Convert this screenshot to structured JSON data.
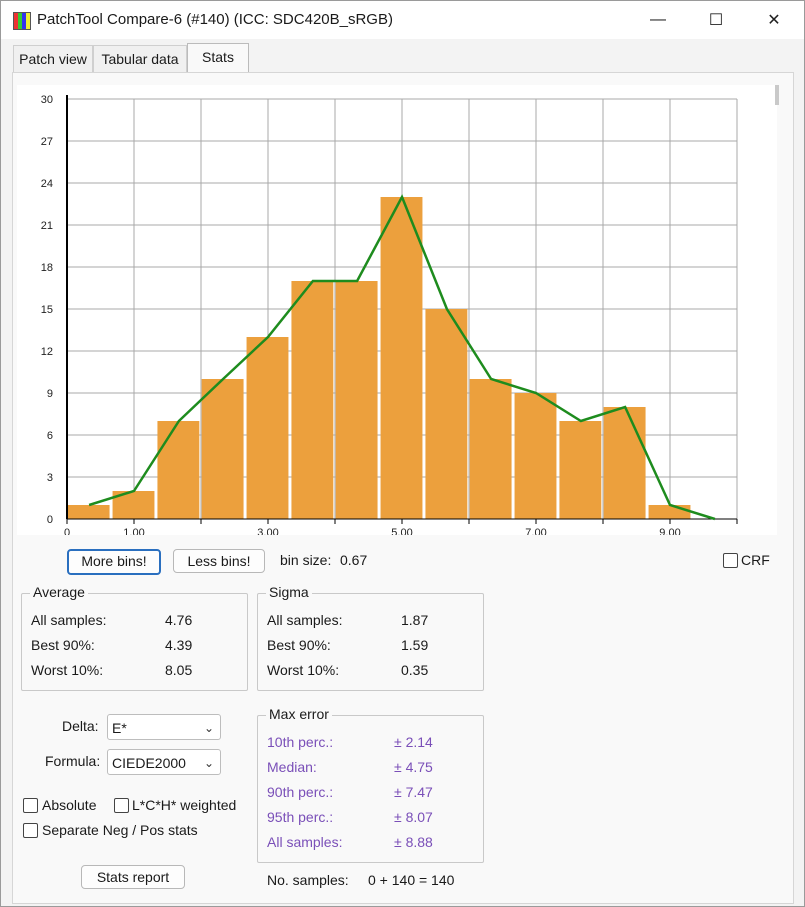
{
  "window": {
    "title": "PatchTool Compare-6 (#140) (ICC: SDC420B_sRGB)",
    "minimize": "—",
    "maximize": "☐",
    "close": "✕"
  },
  "tabs": [
    {
      "label": "Patch view"
    },
    {
      "label": "Tabular data"
    },
    {
      "label": "Stats"
    }
  ],
  "colors": {
    "bar": "#eca03d",
    "line": "#1e8c1e",
    "accent": "#2a6fbf",
    "purple_text": "#7a4fb8"
  },
  "chart_data": {
    "type": "bar",
    "bin_centers": [
      0.33,
      1.0,
      1.67,
      2.33,
      3.0,
      3.67,
      4.33,
      5.0,
      5.67,
      6.33,
      7.0,
      7.67,
      8.33,
      9.0
    ],
    "values": [
      1,
      2,
      7,
      10,
      13,
      17,
      17,
      23,
      15,
      10,
      9,
      7,
      8,
      1
    ],
    "line_x": [
      0.33,
      1.0,
      1.67,
      2.33,
      3.0,
      3.67,
      4.33,
      5.0,
      5.67,
      6.33,
      7.0,
      7.67,
      8.33,
      9.0,
      9.67
    ],
    "line_y": [
      1,
      2,
      7,
      10,
      13,
      17,
      17,
      23,
      15,
      10,
      9,
      7,
      8,
      1,
      0
    ],
    "xlim": [
      0,
      10
    ],
    "ylim": [
      0,
      30
    ],
    "yticks": [
      "0",
      "3",
      "6",
      "9",
      "12",
      "15",
      "18",
      "21",
      "24",
      "27",
      "30"
    ],
    "xticks": [
      {
        "v": 0,
        "label": "0"
      },
      {
        "v": 1,
        "label": "1.00"
      },
      {
        "v": 3,
        "label": "3.00"
      },
      {
        "v": 5,
        "label": "5.00"
      },
      {
        "v": 7,
        "label": "7.00"
      },
      {
        "v": 9,
        "label": "9.00"
      }
    ],
    "grid": true
  },
  "controls": {
    "more_bins": "More bins!",
    "less_bins": "Less bins!",
    "bin_size_label": "bin size:",
    "bin_size_value": "0.67",
    "crf_label": "CRF"
  },
  "average": {
    "title": "Average",
    "rows": [
      {
        "label": "All samples:",
        "value": "4.76"
      },
      {
        "label": "Best 90%:",
        "value": "4.39"
      },
      {
        "label": "Worst 10%:",
        "value": "8.05"
      }
    ]
  },
  "sigma": {
    "title": "Sigma",
    "rows": [
      {
        "label": "All samples:",
        "value": "1.87"
      },
      {
        "label": "Best 90%:",
        "value": "1.59"
      },
      {
        "label": "Worst 10%:",
        "value": "0.35"
      }
    ]
  },
  "delta": {
    "label": "Delta:",
    "value": "E*"
  },
  "formula": {
    "label": "Formula:",
    "value": "CIEDE2000"
  },
  "options": {
    "absolute": "Absolute",
    "lch_weighted": "L*C*H* weighted",
    "separate": "Separate Neg / Pos stats"
  },
  "stats_report": "Stats report",
  "max_error": {
    "title": "Max error",
    "rows": [
      {
        "label": "10th perc.:",
        "value": "± 2.14"
      },
      {
        "label": "Median:",
        "value": "± 4.75"
      },
      {
        "label": "90th perc.:",
        "value": "± 7.47"
      },
      {
        "label": "95th perc.:",
        "value": "± 8.07"
      },
      {
        "label": "All samples:",
        "value": "± 8.88"
      }
    ]
  },
  "samples": {
    "label": "No. samples:",
    "value": "0 + 140 = 140"
  }
}
